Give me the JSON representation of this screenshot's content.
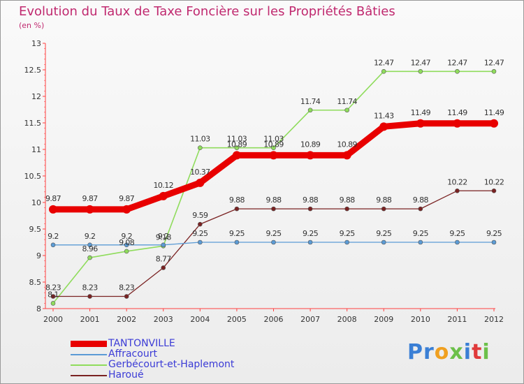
{
  "header": {
    "title": "Evolution du Taux de Taxe Foncière sur les Propriétés Bâties",
    "unit": "(en %)"
  },
  "brand": {
    "letters": [
      "P",
      "r",
      "o",
      "x",
      "i",
      "t",
      "i"
    ],
    "colors": [
      "#3a7fd5",
      "#3a7fd5",
      "#f0a020",
      "#6cc04a",
      "#3a7fd5",
      "#e03a3a",
      "#6cc04a"
    ]
  },
  "chart_data": {
    "type": "line",
    "title": "Evolution du Taux de Taxe Foncière sur les Propriétés Bâties",
    "ylabel": "(en %)",
    "xlabel": "",
    "x": [
      "2000",
      "2001",
      "2002",
      "2003",
      "2004",
      "2005",
      "2006",
      "2007",
      "2008",
      "2009",
      "2010",
      "2011",
      "2012"
    ],
    "ylim": [
      8,
      13
    ],
    "yticks": [
      "8",
      "8.5",
      "9",
      "9.5",
      "10",
      "10.5",
      "11",
      "11.5",
      "12",
      "12.5",
      "13"
    ],
    "grid": false,
    "legend_position": "bottom-left",
    "series": [
      {
        "name": "TANTONVILLE",
        "color": "#e80000",
        "values": [
          9.87,
          9.87,
          9.87,
          10.12,
          10.37,
          10.89,
          10.89,
          10.89,
          10.89,
          11.43,
          11.49,
          11.49,
          11.49
        ],
        "labels": [
          "9.87",
          "9.87",
          "9.87",
          "10.12",
          "10.37",
          "10.89",
          "10.89",
          "10.89",
          "10.89",
          "11.43",
          "11.49",
          "11.49",
          "11.49"
        ]
      },
      {
        "name": "Affracourt",
        "color": "#5b9bd5",
        "values": [
          9.2,
          9.2,
          9.2,
          9.2,
          9.25,
          9.25,
          9.25,
          9.25,
          9.25,
          9.25,
          9.25,
          9.25,
          9.25
        ],
        "labels": [
          "9.2",
          "9.2",
          "9.2",
          "9.2",
          "9.25",
          "9.25",
          "9.25",
          "9.25",
          "9.25",
          "9.25",
          "9.25",
          "9.25",
          "9.25"
        ]
      },
      {
        "name": "Gerbécourt-et-Haplemont",
        "color": "#8fdc5c",
        "values": [
          8.1,
          8.96,
          9.08,
          9.18,
          11.03,
          11.03,
          11.03,
          11.74,
          11.74,
          12.47,
          12.47,
          12.47,
          12.47
        ],
        "labels": [
          "8.1",
          "8.96",
          "9.08",
          "9.18",
          "11.03",
          "11.03",
          "11.03",
          "11.74",
          "11.74",
          "12.47",
          "12.47",
          "12.47",
          "12.47"
        ]
      },
      {
        "name": "Haroué",
        "color": "#7a2222",
        "values": [
          8.23,
          8.23,
          8.23,
          8.77,
          9.59,
          9.88,
          9.88,
          9.88,
          9.88,
          9.88,
          9.88,
          10.22,
          10.22
        ],
        "labels": [
          "8.23",
          "8.23",
          "8.23",
          "8.77",
          "9.59",
          "9.88",
          "9.88",
          "9.88",
          "9.88",
          "9.88",
          "9.88",
          "10.22",
          "10.22"
        ]
      }
    ]
  }
}
